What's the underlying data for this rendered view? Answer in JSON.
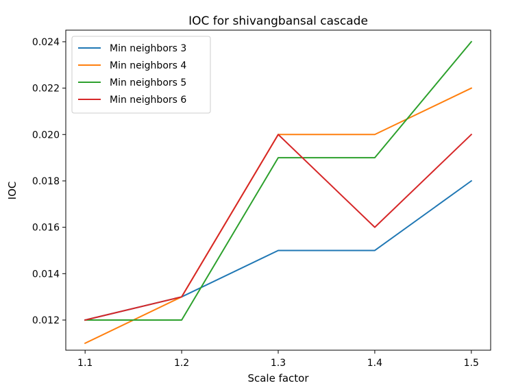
{
  "chart_data": {
    "type": "line",
    "title": "IOC for shivangbansal cascade",
    "xlabel": "Scale factor",
    "ylabel": "IOC",
    "x": [
      1.1,
      1.2,
      1.3,
      1.4,
      1.5
    ],
    "x_tick_labels": [
      "1.1",
      "1.2",
      "1.3",
      "1.4",
      "1.5"
    ],
    "y_ticks": [
      0.012,
      0.014,
      0.016,
      0.018,
      0.02,
      0.022,
      0.024
    ],
    "y_tick_labels": [
      "0.012",
      "0.014",
      "0.016",
      "0.018",
      "0.020",
      "0.022",
      "0.024"
    ],
    "xlim": [
      1.08,
      1.52
    ],
    "ylim": [
      0.0107,
      0.0245
    ],
    "grid": false,
    "legend_position": "top-left",
    "series": [
      {
        "name": "Min neighbors 3",
        "color": "#1f77b4",
        "values": [
          0.012,
          0.013,
          0.015,
          0.015,
          0.018
        ]
      },
      {
        "name": "Min neighbors 4",
        "color": "#ff7f0e",
        "values": [
          0.011,
          0.013,
          0.02,
          0.02,
          0.022
        ]
      },
      {
        "name": "Min neighbors 5",
        "color": "#2ca02c",
        "values": [
          0.012,
          0.012,
          0.019,
          0.019,
          0.024
        ]
      },
      {
        "name": "Min neighbors 6",
        "color": "#d62728",
        "values": [
          0.012,
          0.013,
          0.02,
          0.016,
          0.02
        ]
      }
    ]
  }
}
